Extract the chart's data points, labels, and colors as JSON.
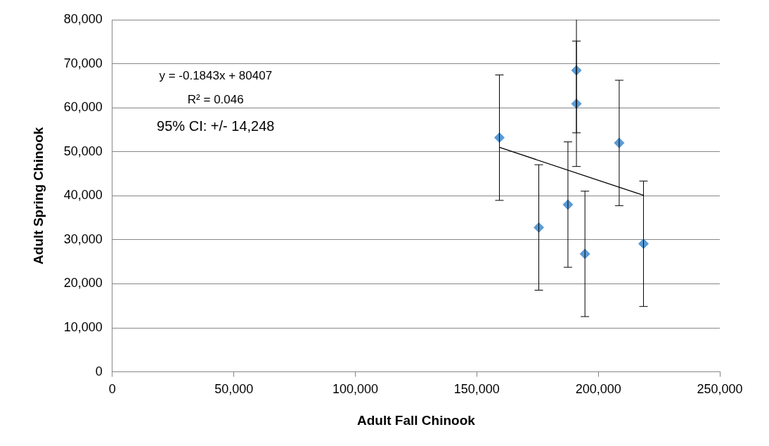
{
  "chart_data": {
    "type": "scatter",
    "xlabel": "Adult Fall Chinook",
    "ylabel": "Adult Spring Chinook",
    "xlim": [
      0,
      250000
    ],
    "xticks": [
      {
        "value": 0,
        "label": "0"
      },
      {
        "value": 50000,
        "label": "50,000"
      },
      {
        "value": 100000,
        "label": "100,000"
      },
      {
        "value": 150000,
        "label": "150,000"
      },
      {
        "value": 200000,
        "label": "200,000"
      },
      {
        "value": 250000,
        "label": "250,000"
      }
    ],
    "ylim": [
      0,
      80000
    ],
    "yticks": [
      {
        "value": 0,
        "label": "0"
      },
      {
        "value": 10000,
        "label": "10,000"
      },
      {
        "value": 20000,
        "label": "20,000"
      },
      {
        "value": 30000,
        "label": "30,000"
      },
      {
        "value": 40000,
        "label": "40,000"
      },
      {
        "value": 50000,
        "label": "50,000"
      },
      {
        "value": 60000,
        "label": "60,000"
      },
      {
        "value": 70000,
        "label": "70,000"
      },
      {
        "value": 80000,
        "label": "80,000"
      }
    ],
    "grid": "y",
    "legend": false,
    "marker": "diamond",
    "series": [
      {
        "type": "scatter",
        "color": "#5b9bd5",
        "x": [
          159300,
          175500,
          187500,
          191000,
          191000,
          194500,
          208600,
          218600
        ],
        "values": [
          53200,
          32800,
          38000,
          68500,
          60900,
          26800,
          52000,
          29100
        ],
        "errors": [
          14248,
          14248,
          14248,
          [
            54300,
            80000
          ],
          14248,
          14248,
          14248,
          14248
        ]
      },
      {
        "type": "line",
        "color": "#000000",
        "marker": "none",
        "x": [
          159300,
          218600
        ],
        "values": [
          51000,
          40100
        ]
      }
    ],
    "annotations": [
      "y = -0.1843x + 80407",
      "R² = 0.046",
      "95% CI: +/- 14,248"
    ]
  }
}
